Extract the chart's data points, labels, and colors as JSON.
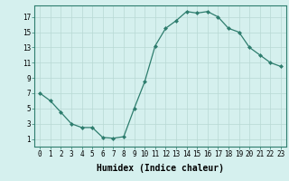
{
  "x": [
    0,
    1,
    2,
    3,
    4,
    5,
    6,
    7,
    8,
    9,
    10,
    11,
    12,
    13,
    14,
    15,
    16,
    17,
    18,
    19,
    20,
    21,
    22,
    23
  ],
  "y": [
    7,
    6,
    4.5,
    3,
    2.5,
    2.5,
    1.2,
    1.1,
    1.3,
    5,
    8.5,
    13.2,
    15.5,
    16.5,
    17.7,
    17.5,
    17.7,
    17.0,
    15.5,
    15.0,
    13.0,
    12.0,
    11.0,
    10.5
  ],
  "line_color": "#2e7d6e",
  "marker": "D",
  "marker_size": 2.0,
  "background_color": "#d5f0ee",
  "grid_color": "#b8d8d4",
  "xlabel": "Humidex (Indice chaleur)",
  "xlabel_fontsize": 7,
  "ylabel_ticks": [
    1,
    3,
    5,
    7,
    9,
    11,
    13,
    15,
    17
  ],
  "xtick_labels": [
    "0",
    "1",
    "2",
    "3",
    "4",
    "5",
    "6",
    "7",
    "8",
    "9",
    "10",
    "11",
    "12",
    "13",
    "14",
    "15",
    "16",
    "17",
    "18",
    "19",
    "20",
    "21",
    "22",
    "23"
  ],
  "xlim": [
    -0.5,
    23.5
  ],
  "ylim": [
    0.0,
    18.5
  ],
  "tick_fontsize": 5.5,
  "spine_color": "#2e7d6e",
  "linewidth": 0.9
}
